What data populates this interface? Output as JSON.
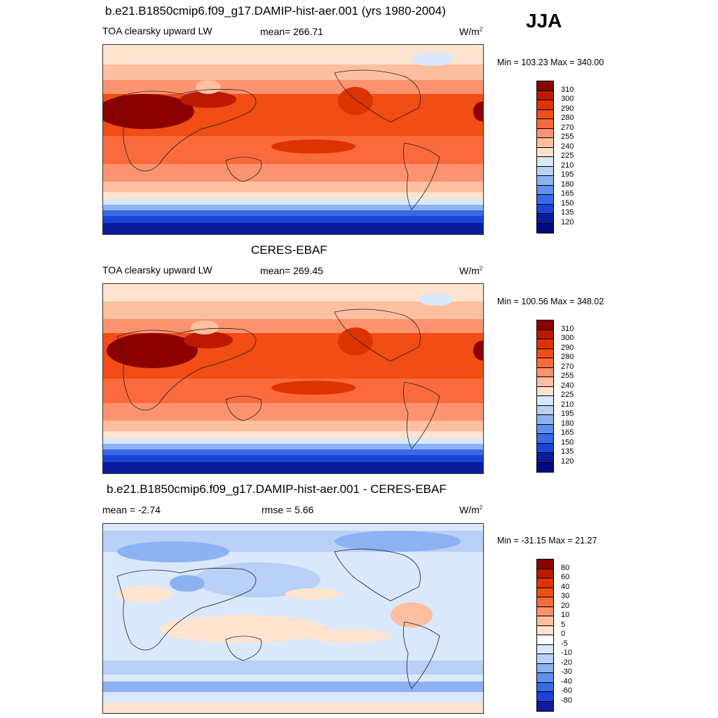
{
  "season": "JJA",
  "panels": [
    {
      "title": "b.e21.B1850cmip6.f09_g17.DAMIP-hist-aer.001 (yrs 1980-2004)",
      "left_label": "TOA clearsky upward LW",
      "mid_label": "mean= 266.71",
      "units": "W/m",
      "units_sup": "2",
      "minmax": "Min = 103.23 Max = 340.00",
      "colorbar_labels": [
        "310",
        "300",
        "290",
        "280",
        "270",
        "255",
        "240",
        "225",
        "210",
        "195",
        "180",
        "165",
        "150",
        "135",
        "120"
      ]
    },
    {
      "title": "CERES-EBAF",
      "left_label": "TOA clearsky upward LW",
      "mid_label": "mean= 269.45",
      "units": "W/m",
      "units_sup": "2",
      "minmax": "Min = 100.56 Max = 348.02",
      "colorbar_labels": [
        "310",
        "300",
        "290",
        "280",
        "270",
        "255",
        "240",
        "225",
        "210",
        "195",
        "180",
        "165",
        "150",
        "135",
        "120"
      ]
    },
    {
      "title": "b.e21.B1850cmip6.f09_g17.DAMIP-hist-aer.001 - CERES-EBAF",
      "left_label": "mean =  -2.74",
      "mid_label": "rmse =   5.66",
      "units": "W/m",
      "units_sup": "2",
      "minmax": "Min = -31.15 Max =  21.27",
      "colorbar_labels": [
        "80",
        "60",
        "40",
        "30",
        "20",
        "10",
        "5",
        "0",
        "-5",
        "-10",
        "-20",
        "-30",
        "-40",
        "-60",
        "-80"
      ]
    }
  ],
  "colors": {
    "abs_scale": [
      "#8b0000",
      "#bb1a00",
      "#dd3300",
      "#f14d14",
      "#fb6a3c",
      "#fc9370",
      "#fdbfa0",
      "#fee3cf",
      "#ffffff",
      "#d9e8fb",
      "#b9d0f7",
      "#8db2f2",
      "#5f8ff0",
      "#3a6ae8",
      "#1a44d6",
      "#0a1c9e"
    ],
    "diff_scale": [
      "#8b0000",
      "#bb1a00",
      "#dd3300",
      "#f14d14",
      "#fb6a3c",
      "#fc9370",
      "#fdbfa0",
      "#fee3cf",
      "#ffffff",
      "#d9e8fb",
      "#b9d0f7",
      "#8db2f2",
      "#5f8ff0",
      "#3a6ae8",
      "#1a44d6",
      "#0a1c9e"
    ]
  }
}
